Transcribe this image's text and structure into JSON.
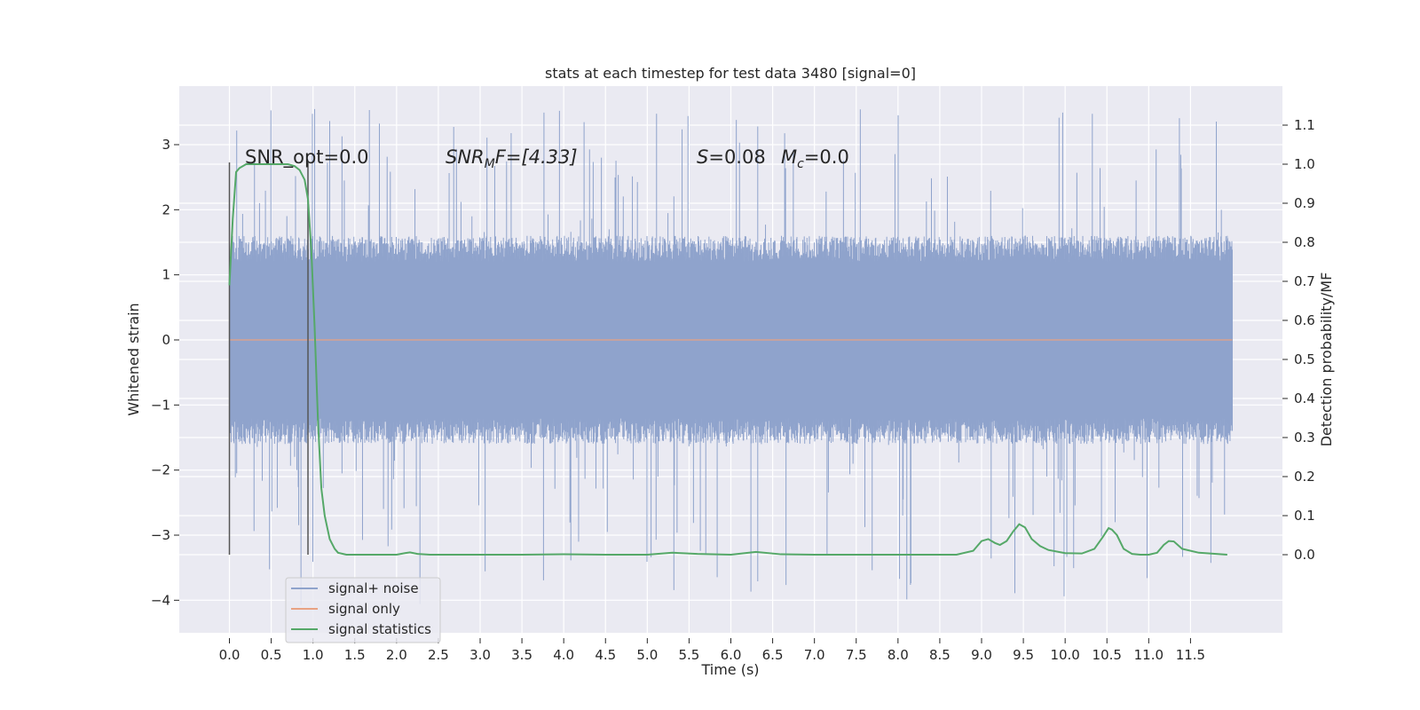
{
  "chart_data": {
    "type": "line",
    "title": "stats at each timestep for test data 3480 [signal=0]",
    "xlabel": "Time (s)",
    "ylabel_left": "Whitened strain",
    "ylabel_right": "Detection probability/MF",
    "xlim": [
      -0.6,
      12.6
    ],
    "ylim_left": [
      -4.5,
      3.9
    ],
    "ylim_right": [
      -0.2,
      1.2
    ],
    "grid": true,
    "legend_position": "lower-left",
    "x_ticks": [
      "0.0",
      "0.5",
      "1.0",
      "1.5",
      "2.0",
      "2.5",
      "3.0",
      "3.5",
      "4.0",
      "4.5",
      "5.0",
      "5.5",
      "6.0",
      "6.5",
      "7.0",
      "7.5",
      "8.0",
      "8.5",
      "9.0",
      "9.5",
      "10.0",
      "10.5",
      "11.0",
      "11.5"
    ],
    "y_ticks_left": [
      {
        "v": 3,
        "label": "3"
      },
      {
        "v": 2,
        "label": "2"
      },
      {
        "v": 1,
        "label": "1"
      },
      {
        "v": 0,
        "label": "0"
      },
      {
        "v": -1,
        "label": "−1"
      },
      {
        "v": -2,
        "label": "−2"
      },
      {
        "v": -3,
        "label": "−3"
      },
      {
        "v": -4,
        "label": "−4"
      }
    ],
    "y_ticks_right": [
      "0.0",
      "0.1",
      "0.2",
      "0.3",
      "0.4",
      "0.5",
      "0.6",
      "0.7",
      "0.8",
      "0.9",
      "1.0",
      "1.1"
    ],
    "annotations": {
      "snr_opt": "SNR_opt=0.0",
      "snr_mf_name": "SNR",
      "snr_mf_sub": "M",
      "snr_mf_rest": "F=[4.33]",
      "s_name": "S",
      "s_rest": "=0.08",
      "mc_name": "M",
      "mc_sub": "c",
      "mc_rest": "=0.0"
    },
    "vlines": [
      0.0,
      0.94
    ],
    "series": [
      {
        "name": "signal+ noise",
        "color": "#8fa3cc",
        "axis": "left",
        "x_range": [
          0.0,
          12.0
        ],
        "typical_range": [
          -1.6,
          1.6
        ],
        "peak_range": [
          -4.1,
          3.55
        ]
      },
      {
        "name": "signal only",
        "color": "#e8a283",
        "axis": "left",
        "x": [
          0.0,
          12.0
        ],
        "y": [
          0.0,
          0.0
        ]
      },
      {
        "name": "signal statistics",
        "color": "#55a868",
        "axis": "right",
        "x": [
          0.0,
          0.04,
          0.08,
          0.12,
          0.2,
          0.3,
          0.4,
          0.5,
          0.6,
          0.7,
          0.78,
          0.84,
          0.9,
          0.94,
          0.98,
          1.02,
          1.06,
          1.1,
          1.14,
          1.2,
          1.26,
          1.3,
          1.4,
          1.6,
          2.0,
          2.1,
          2.16,
          2.25,
          2.4,
          3.0,
          3.5,
          4.0,
          4.5,
          5.0,
          5.3,
          5.6,
          6.0,
          6.3,
          6.6,
          7.0,
          8.0,
          8.7,
          8.9,
          9.0,
          9.08,
          9.16,
          9.22,
          9.3,
          9.38,
          9.45,
          9.52,
          9.6,
          9.7,
          9.8,
          10.0,
          10.2,
          10.35,
          10.45,
          10.52,
          10.56,
          10.62,
          10.7,
          10.8,
          10.9,
          11.0,
          11.1,
          11.18,
          11.24,
          11.3,
          11.4,
          11.6,
          11.94
        ],
        "y": [
          0.69,
          0.86,
          0.98,
          0.99,
          1.0,
          1.0,
          1.0,
          1.0,
          1.0,
          1.0,
          0.995,
          0.985,
          0.96,
          0.91,
          0.78,
          0.58,
          0.34,
          0.17,
          0.1,
          0.04,
          0.015,
          0.005,
          0.0,
          0.0,
          0.0,
          0.004,
          0.006,
          0.002,
          0.0,
          0.0,
          0.0,
          0.001,
          0.0,
          0.0,
          0.005,
          0.002,
          0.0,
          0.007,
          0.001,
          0.0,
          0.0,
          0.0,
          0.01,
          0.035,
          0.04,
          0.03,
          0.025,
          0.035,
          0.06,
          0.078,
          0.07,
          0.04,
          0.022,
          0.012,
          0.004,
          0.003,
          0.015,
          0.045,
          0.068,
          0.064,
          0.05,
          0.015,
          0.002,
          0.0,
          0.0,
          0.005,
          0.025,
          0.035,
          0.034,
          0.015,
          0.005,
          0.0
        ]
      }
    ]
  }
}
